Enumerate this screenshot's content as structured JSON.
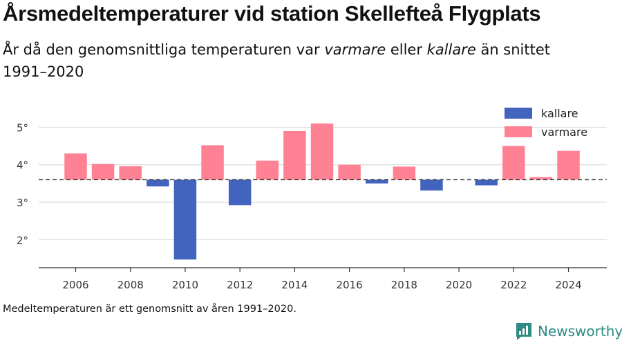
{
  "header": {
    "title": "Årsmedeltemperaturer vid station Skellefteå Flygplats",
    "subtitle_part1": "År då den genomsnittliga temperaturen var ",
    "subtitle_em1": "varmare",
    "subtitle_part2": " eller ",
    "subtitle_em2": "kallare",
    "subtitle_part3": " än snittet 1991–2020"
  },
  "footnote": "Medeltemperaturen är ett genomsnitt av åren 1991–2020.",
  "brand": {
    "name": "Newsworthy",
    "icon": "newsworthy-logo-icon",
    "color": "#2e8b84"
  },
  "chart_data": {
    "type": "bar",
    "baseline": 3.6,
    "x": [
      2006,
      2007,
      2008,
      2009,
      2010,
      2011,
      2012,
      2013,
      2014,
      2015,
      2016,
      2017,
      2018,
      2019,
      2020,
      2021,
      2022,
      2023,
      2024
    ],
    "values": [
      4.3,
      4.02,
      3.96,
      3.42,
      1.47,
      4.52,
      2.92,
      4.11,
      4.9,
      5.1,
      4.0,
      3.5,
      3.95,
      3.31,
      null,
      3.45,
      4.5,
      3.67,
      4.37
    ],
    "ylim": [
      1.25,
      5.45
    ],
    "yticks": [
      2,
      3,
      4,
      5
    ],
    "ytick_labels": [
      "2°",
      "3°",
      "4°",
      "5°"
    ],
    "xticks": [
      2006,
      2008,
      2010,
      2012,
      2014,
      2016,
      2018,
      2020,
      2022,
      2024
    ],
    "xtick_labels": [
      "2006",
      "2008",
      "2010",
      "2012",
      "2014",
      "2016",
      "2018",
      "2020",
      "2022",
      "2024"
    ],
    "grid": true,
    "legend_position": "top-right",
    "legend": [
      {
        "key": "kallare",
        "label": "kallare",
        "color": "#4263be"
      },
      {
        "key": "varmare",
        "label": "varmare",
        "color": "#ff8294"
      }
    ],
    "baseline_style": "dashed",
    "colors": {
      "warmer": "#ff8294",
      "colder": "#4263be",
      "grid": "#dddddd",
      "axis": "#333333"
    }
  }
}
